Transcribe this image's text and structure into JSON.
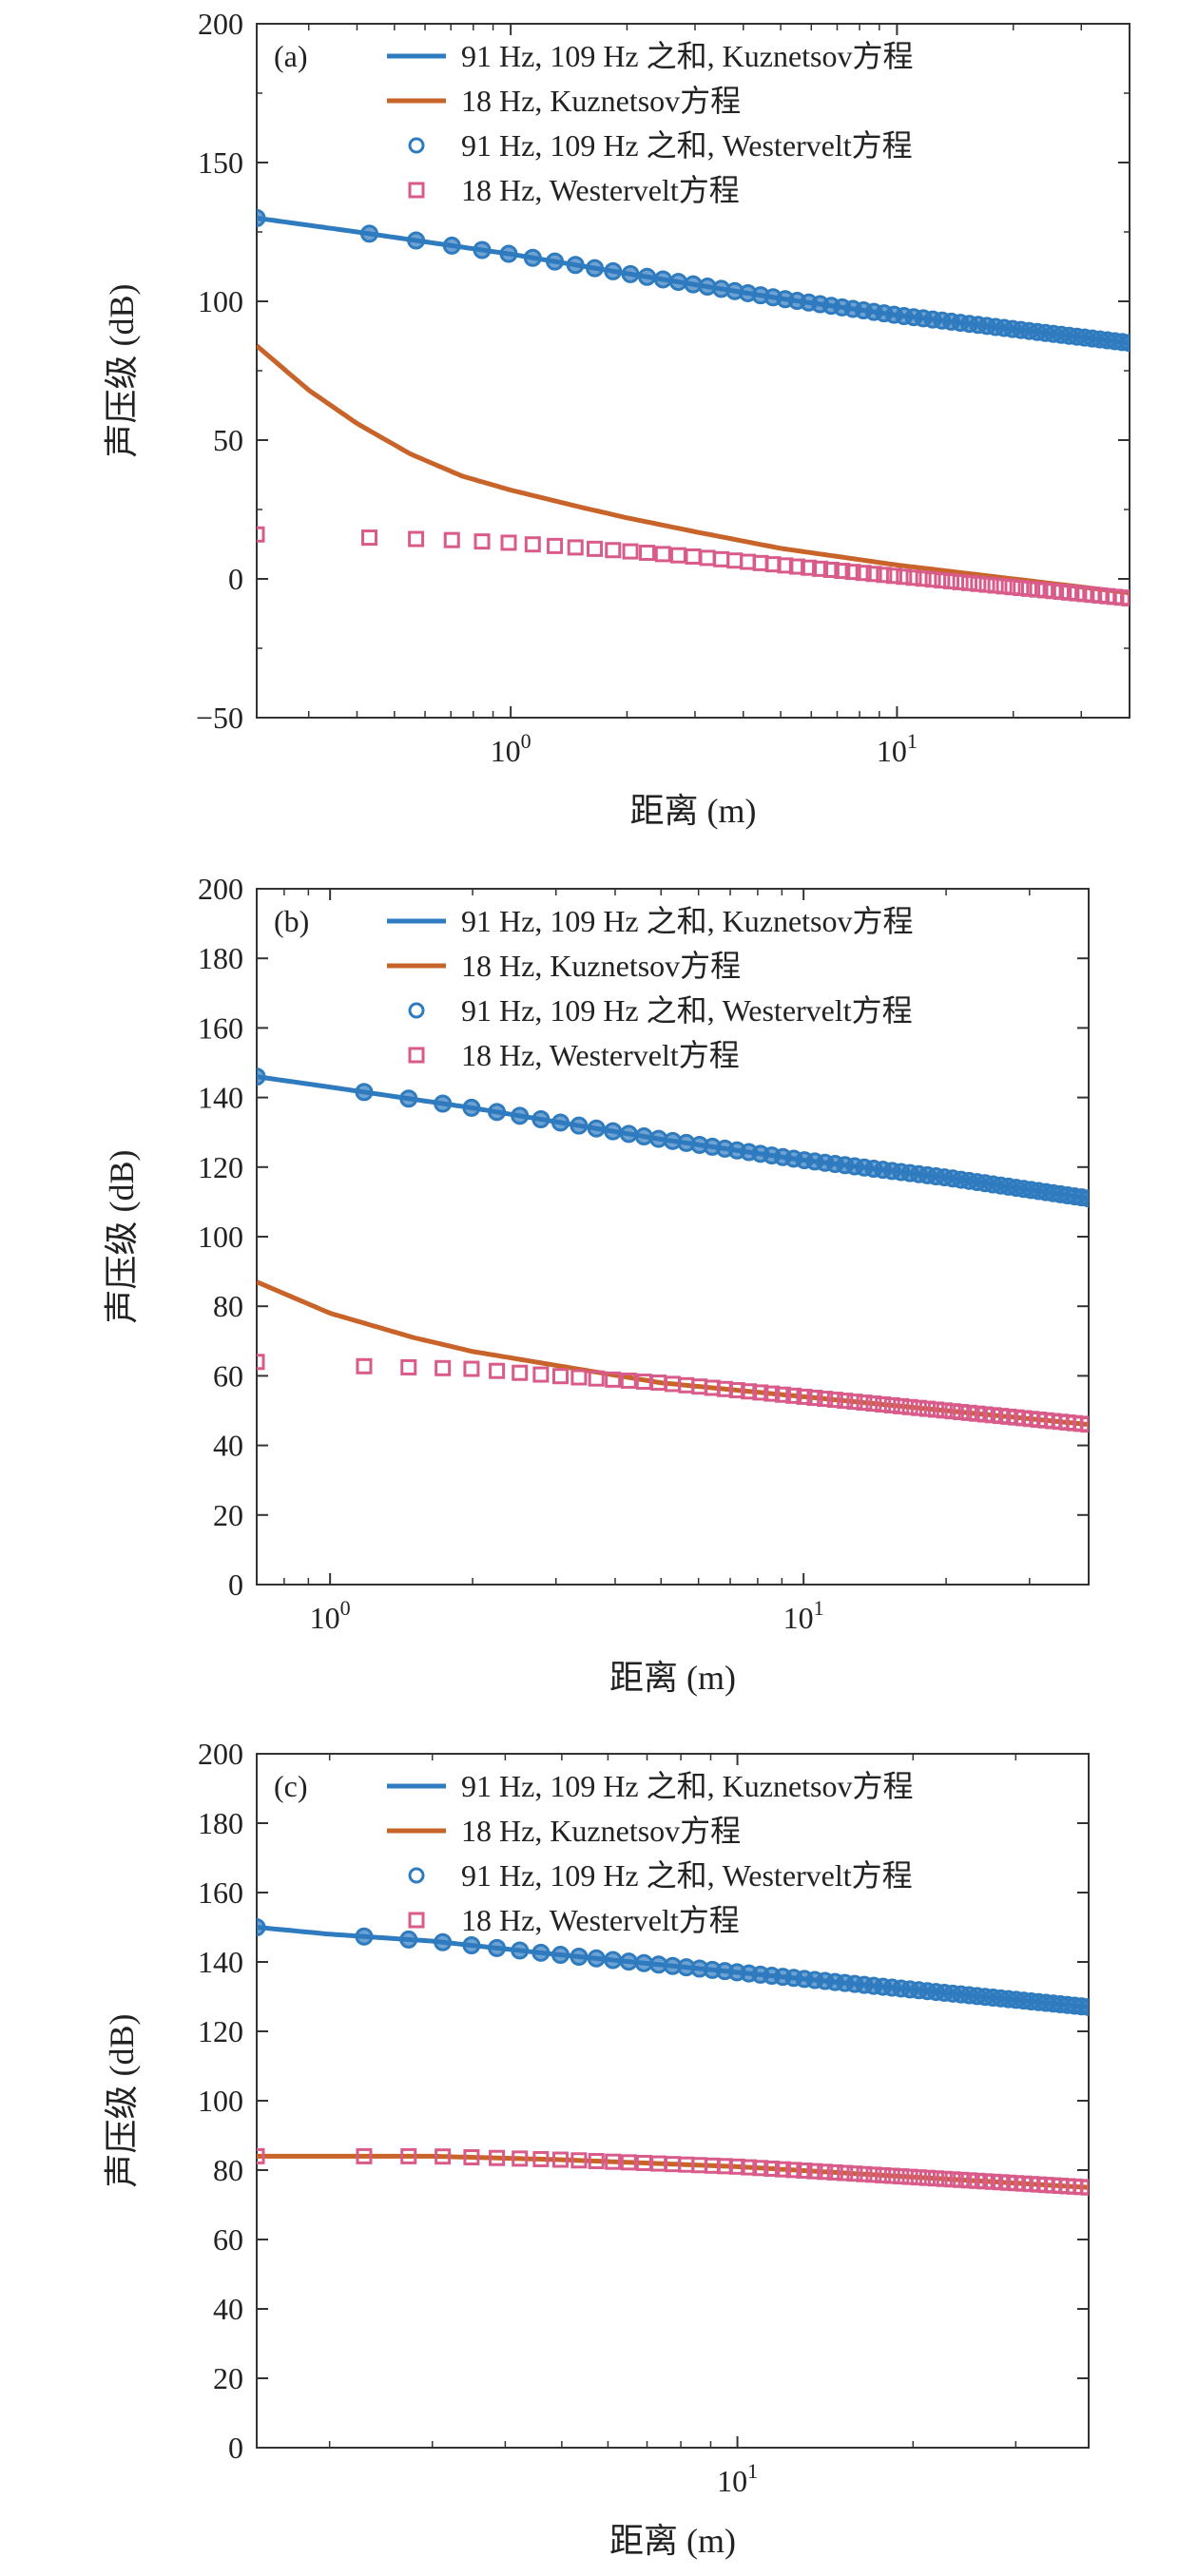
{
  "colors": {
    "blue": "#2f7bbf",
    "orange": "#c8642a",
    "pink_marker": "#d95b8a",
    "axis": "#333333"
  },
  "chart_data": [
    {
      "type": "line",
      "panel_label": "(a)",
      "xlabel": "距离 (m)",
      "ylabel": "声压级 (dB)",
      "x_scale": "log",
      "xlim": [
        0.22,
        40
      ],
      "ylim": [
        -50,
        200
      ],
      "yticks": [
        -50,
        0,
        50,
        100,
        150,
        200
      ],
      "ytick_labels": [
        "−50",
        "0",
        "50",
        "100",
        "150",
        "200"
      ],
      "xticks": [
        1,
        10
      ],
      "xtick_labels": [
        "10⁰",
        "10¹"
      ],
      "grid": false,
      "legend_placement": "top-center",
      "series": [
        {
          "name": "91 Hz, 109 Hz 之和, Kuznetsov方程",
          "style": "line",
          "color": "#2f7bbf",
          "x": [
            0.22,
            0.4,
            1,
            2,
            5,
            10,
            20,
            40
          ],
          "y": [
            130,
            125,
            117,
            110,
            101,
            95,
            90,
            85
          ]
        },
        {
          "name": "18 Hz, Kuznetsov方程",
          "style": "line",
          "color": "#c8642a",
          "x": [
            0.22,
            0.3,
            0.4,
            0.55,
            0.75,
            1,
            1.5,
            2,
            3,
            5,
            10,
            20,
            40
          ],
          "y": [
            84,
            68,
            56,
            45,
            37,
            32,
            26,
            22,
            17,
            11,
            5,
            0,
            -5
          ]
        },
        {
          "name": "91 Hz, 109 Hz 之和, Westervelt方程",
          "style": "circle",
          "color": "#2f7bbf",
          "x": [
            0.22,
            0.4,
            1,
            2,
            5,
            10,
            20,
            40
          ],
          "y": [
            130,
            125,
            117,
            110,
            101,
            95,
            90,
            85
          ]
        },
        {
          "name": "18 Hz, Westervelt方程",
          "style": "square",
          "color": "#d95b8a",
          "x": [
            0.22,
            0.4,
            0.7,
            1,
            2,
            3,
            5,
            10,
            20,
            40
          ],
          "y": [
            16,
            15,
            14,
            13,
            10,
            8,
            5,
            1,
            -3,
            -7
          ]
        }
      ]
    },
    {
      "type": "line",
      "panel_label": "(b)",
      "xlabel": "距离 (m)",
      "ylabel": "声压级 (dB)",
      "x_scale": "log",
      "xlim": [
        0.7,
        40
      ],
      "ylim": [
        0,
        200
      ],
      "yticks": [
        0,
        20,
        40,
        60,
        80,
        100,
        120,
        140,
        160,
        180,
        200
      ],
      "ytick_labels": [
        "0",
        "20",
        "40",
        "60",
        "80",
        "100",
        "120",
        "140",
        "160",
        "180",
        "200"
      ],
      "xticks": [
        1,
        10
      ],
      "xtick_labels": [
        "10⁰",
        "10¹"
      ],
      "grid": false,
      "legend_placement": "top-center",
      "series": [
        {
          "name": "91 Hz, 109 Hz 之和, Kuznetsov方程",
          "style": "line",
          "color": "#2f7bbf",
          "x": [
            0.7,
            1,
            2,
            5,
            10,
            20,
            40
          ],
          "y": [
            146,
            143,
            137,
            128,
            122,
            117,
            111
          ]
        },
        {
          "name": "18 Hz, Kuznetsov方程",
          "style": "line",
          "color": "#c8642a",
          "x": [
            0.7,
            1,
            1.5,
            2,
            3,
            5,
            10,
            20,
            40
          ],
          "y": [
            87,
            78,
            71,
            67,
            63,
            58,
            54,
            50,
            46
          ]
        },
        {
          "name": "91 Hz, 109 Hz 之和, Westervelt方程",
          "style": "circle",
          "color": "#2f7bbf",
          "x": [
            0.7,
            1,
            2,
            5,
            10,
            20,
            40
          ],
          "y": [
            146,
            143,
            137,
            128,
            122,
            117,
            111
          ]
        },
        {
          "name": "18 Hz, Westervelt方程",
          "style": "square",
          "color": "#d95b8a",
          "x": [
            0.7,
            1,
            2,
            3,
            5,
            10,
            20,
            40
          ],
          "y": [
            64,
            63,
            62,
            60,
            58,
            54,
            50,
            46
          ]
        }
      ]
    },
    {
      "type": "line",
      "panel_label": "(c)",
      "xlabel": "距离 (m)",
      "ylabel": "声压级 (dB)",
      "x_scale": "log",
      "xlim": [
        1.5,
        40
      ],
      "ylim": [
        0,
        200
      ],
      "yticks": [
        0,
        20,
        40,
        60,
        80,
        100,
        120,
        140,
        160,
        180,
        200
      ],
      "ytick_labels": [
        "0",
        "20",
        "40",
        "60",
        "80",
        "100",
        "120",
        "140",
        "160",
        "180",
        "200"
      ],
      "xticks": [
        10
      ],
      "xtick_labels": [
        "10¹"
      ],
      "grid": false,
      "legend_placement": "top-center",
      "series": [
        {
          "name": "91 Hz, 109 Hz 之和, Kuznetsov方程",
          "style": "line",
          "color": "#2f7bbf",
          "x": [
            1.5,
            2,
            3,
            5,
            10,
            20,
            40
          ],
          "y": [
            150,
            148,
            146,
            142,
            137,
            132,
            127
          ]
        },
        {
          "name": "18 Hz, Kuznetsov方程",
          "style": "line",
          "color": "#c8642a",
          "x": [
            1.5,
            2,
            3,
            5,
            10,
            20,
            40
          ],
          "y": [
            84,
            84,
            84,
            83,
            81,
            78,
            75
          ]
        },
        {
          "name": "91 Hz, 109 Hz 之和, Westervelt方程",
          "style": "circle",
          "color": "#2f7bbf",
          "x": [
            1.5,
            2,
            3,
            5,
            10,
            20,
            40
          ],
          "y": [
            150,
            148,
            146,
            142,
            137,
            132,
            127
          ]
        },
        {
          "name": "18 Hz, Westervelt方程",
          "style": "square",
          "color": "#d95b8a",
          "x": [
            1.5,
            2,
            3,
            5,
            10,
            20,
            40
          ],
          "y": [
            84,
            84,
            84,
            83,
            81,
            78,
            75
          ]
        }
      ]
    }
  ]
}
